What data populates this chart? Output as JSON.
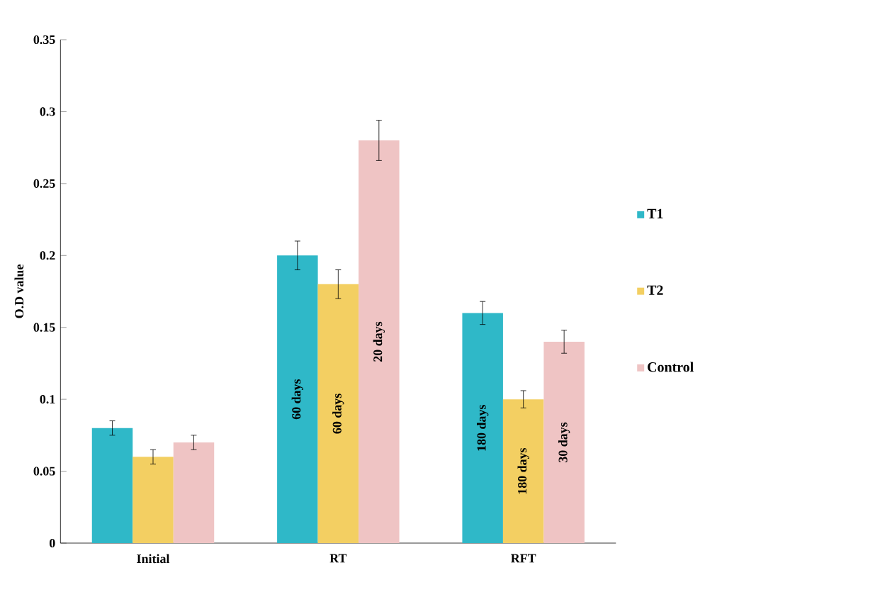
{
  "chart_data": {
    "type": "bar",
    "ylabel": "O.D value",
    "categories": [
      "Initial",
      "RT",
      "RFT"
    ],
    "series": [
      {
        "name": "T1",
        "color": "#2fb8c8",
        "values": [
          0.08,
          0.2,
          0.16
        ],
        "errors": [
          0.005,
          0.01,
          0.008
        ]
      },
      {
        "name": "T2",
        "color": "#f3cf62",
        "values": [
          0.06,
          0.18,
          0.1
        ],
        "errors": [
          0.005,
          0.01,
          0.006
        ]
      },
      {
        "name": "Control",
        "color": "#efc4c4",
        "values": [
          0.07,
          0.28,
          0.14
        ],
        "errors": [
          0.005,
          0.014,
          0.008
        ]
      }
    ],
    "annotations": [
      "60 days",
      "60 days",
      "20 days",
      "180 days",
      "180 days",
      "30 days"
    ],
    "ylim": [
      0,
      0.35
    ],
    "yticks": [
      0,
      0.05,
      0.1,
      0.15,
      0.2,
      0.25,
      0.3,
      0.35
    ],
    "legend": "right"
  }
}
